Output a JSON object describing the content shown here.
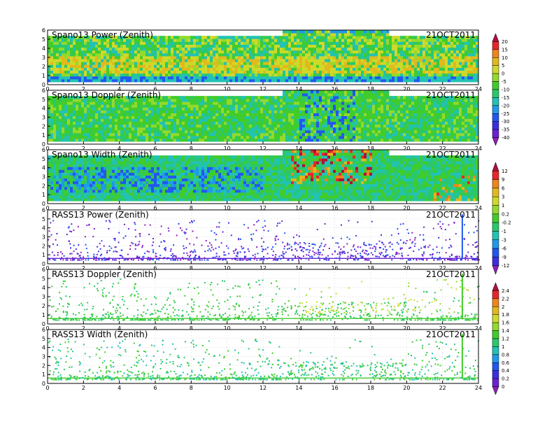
{
  "figure": {
    "date_label": "21OCT2011",
    "x_ticks": [
      "0",
      "2",
      "4",
      "6",
      "8",
      "10",
      "12",
      "14",
      "16",
      "18",
      "20",
      "22",
      "24"
    ],
    "y_ticks": [
      "0",
      "1",
      "2",
      "3",
      "4",
      "5",
      "6"
    ]
  },
  "chart_data": [
    {
      "type": "heatmap",
      "title": "Spano13 Power (Zenith)",
      "xlim": [
        0,
        24
      ],
      "ylim": [
        0,
        6
      ],
      "grid": false,
      "colorbar": "power-doppler"
    },
    {
      "type": "heatmap",
      "title": "Spano13 Doppler (Zenith)",
      "xlim": [
        0,
        24
      ],
      "ylim": [
        0,
        6
      ],
      "grid": false,
      "colorbar": "power-doppler"
    },
    {
      "type": "heatmap",
      "title": "Spano13 Width (Zenith)",
      "xlim": [
        0,
        24
      ],
      "ylim": [
        0,
        6
      ],
      "grid": false,
      "colorbar": "width"
    },
    {
      "type": "scatter",
      "title": "RASS13 Power (Zenith)",
      "xlim": [
        0,
        24
      ],
      "ylim": [
        0,
        6
      ],
      "grid": true,
      "colorbar": "width"
    },
    {
      "type": "scatter",
      "title": "RASS13 Doppler (Zenith)",
      "xlim": [
        0,
        24
      ],
      "ylim": [
        0,
        6
      ],
      "grid": true,
      "colorbar": "rass"
    },
    {
      "type": "scatter",
      "title": "RASS13 Width (Zenith)",
      "xlim": [
        0,
        24
      ],
      "ylim": [
        0,
        6
      ],
      "grid": true,
      "colorbar": "rass"
    }
  ],
  "colorbars": {
    "power-doppler": {
      "labels": [
        "20",
        "15",
        "10",
        "5",
        "0",
        "-5",
        "-10",
        "-15",
        "-20",
        "-25",
        "-30",
        "-35",
        "-40"
      ],
      "colors": [
        "#b0103a",
        "#e8262a",
        "#f0841e",
        "#e2b81c",
        "#cfd92a",
        "#93da2c",
        "#41cc2a",
        "#2ac86a",
        "#22c2b4",
        "#1f9ae8",
        "#2257f0",
        "#3b2fe0",
        "#6a22d2",
        "#8e1fb8"
      ]
    },
    "width": {
      "labels": [
        "12",
        "9",
        "6",
        "3",
        "1",
        "0.2",
        "-0.2",
        "-1",
        "-3",
        "-6",
        "-9",
        "-12"
      ],
      "colors": [
        "#b0103a",
        "#e8262a",
        "#f0841e",
        "#e2b81c",
        "#cfd92a",
        "#93da2c",
        "#41cc2a",
        "#2ac86a",
        "#22c2b4",
        "#1f9ae8",
        "#2257f0",
        "#3b2fe0",
        "#8e1fb8"
      ]
    },
    "rass": {
      "labels": [
        "2.4",
        "2.2",
        "2",
        "1.8",
        "1.6",
        "1.4",
        "1.2",
        "1",
        "0.8",
        "0.6",
        "0.4",
        "0.2",
        "0"
      ],
      "colors": [
        "#b0103a",
        "#e8262a",
        "#f0841e",
        "#e2b81c",
        "#cfd92a",
        "#93da2c",
        "#41cc2a",
        "#2ac86a",
        "#22c2b4",
        "#1f9ae8",
        "#2257f0",
        "#3b2fe0",
        "#6a22d2",
        "#8e1fb8"
      ]
    }
  }
}
